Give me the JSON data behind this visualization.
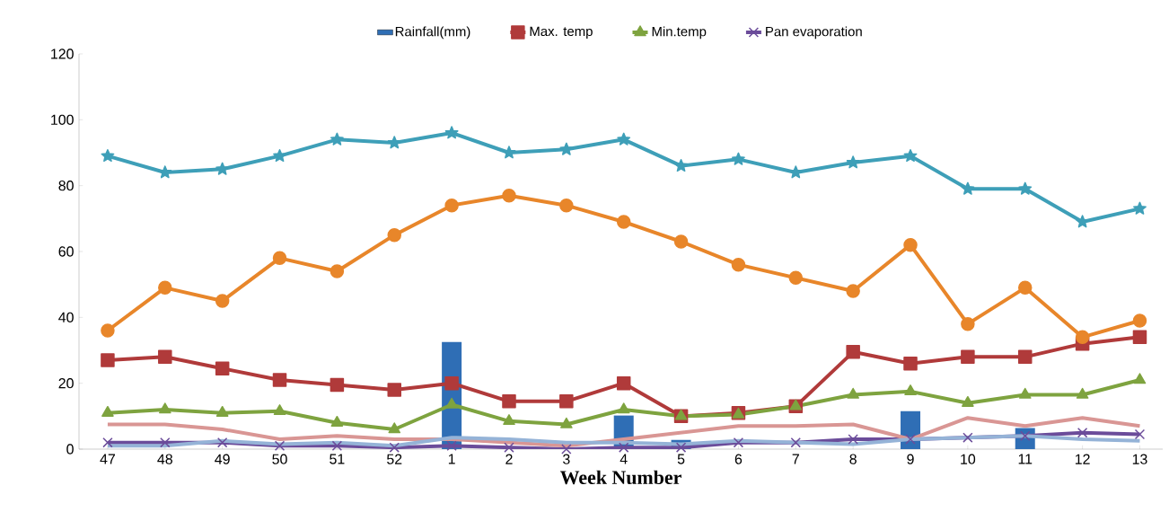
{
  "chart_data": {
    "type": "line",
    "xlabel": "Week Number",
    "categories": [
      "47",
      "48",
      "49",
      "50",
      "51",
      "52",
      "1",
      "2",
      "3",
      "4",
      "5",
      "6",
      "7",
      "8",
      "9",
      "10",
      "11",
      "12",
      "13"
    ],
    "ylim": [
      0,
      120
    ],
    "yticks": [
      0,
      20,
      40,
      60,
      80,
      100,
      120
    ],
    "legend": "top",
    "grid": false,
    "series": [
      {
        "name": "Rainfall(mm)",
        "type": "bar",
        "color": "#2f6eb5",
        "values": [
          0,
          0,
          0,
          0,
          0,
          0,
          32.5,
          0,
          0,
          10.2,
          2.8,
          0,
          0,
          0,
          11.5,
          0,
          6.4,
          0,
          0
        ]
      },
      {
        "name": "Max. temp",
        "color": "#b03a3a",
        "marker": "square",
        "values": [
          27,
          28,
          24.5,
          21,
          19.5,
          18,
          20,
          14.5,
          14.5,
          20,
          10,
          11,
          13,
          29.5,
          26,
          28,
          28,
          32,
          34
        ]
      },
      {
        "name": "Min.temp",
        "color": "#7ea33f",
        "marker": "triangle",
        "values": [
          11,
          12,
          11,
          11.5,
          8,
          6,
          13.5,
          8.5,
          7.5,
          12,
          10,
          10.5,
          13,
          16.5,
          17.5,
          14,
          16.5,
          16.5,
          21
        ]
      },
      {
        "name": "Pan evaporation",
        "color": "#6b4c9a",
        "marker": "cross",
        "values": [
          2,
          2,
          2,
          1,
          1,
          0.5,
          1,
          0.5,
          0,
          0.5,
          0.5,
          2,
          2,
          3,
          3,
          3.5,
          4,
          5,
          4.5
        ]
      },
      {
        "color": "#3e9fb8",
        "marker": "star",
        "values": [
          89,
          84,
          85,
          89,
          94,
          93,
          96,
          90,
          91,
          94,
          86,
          88,
          84,
          87,
          89,
          79,
          79,
          69,
          73
        ]
      },
      {
        "color": "#e8862a",
        "marker": "circle",
        "values": [
          36,
          49,
          45,
          58,
          54,
          65,
          74,
          77,
          74,
          69,
          63,
          56,
          52,
          48,
          62,
          38,
          49,
          34,
          39
        ]
      },
      {
        "color": "#d99694",
        "marker": "none",
        "values": [
          7.5,
          7.5,
          6,
          3,
          4,
          3,
          3,
          2,
          1,
          3,
          5,
          7,
          7,
          7.5,
          3,
          9.5,
          7,
          9.5,
          7
        ]
      },
      {
        "color": "#95b3d7",
        "marker": "none",
        "values": [
          1,
          1,
          2.5,
          1.5,
          2,
          1,
          3.5,
          3,
          2,
          2,
          1.5,
          2.5,
          2,
          1.5,
          3,
          3.5,
          4,
          3,
          2.5
        ]
      }
    ]
  }
}
